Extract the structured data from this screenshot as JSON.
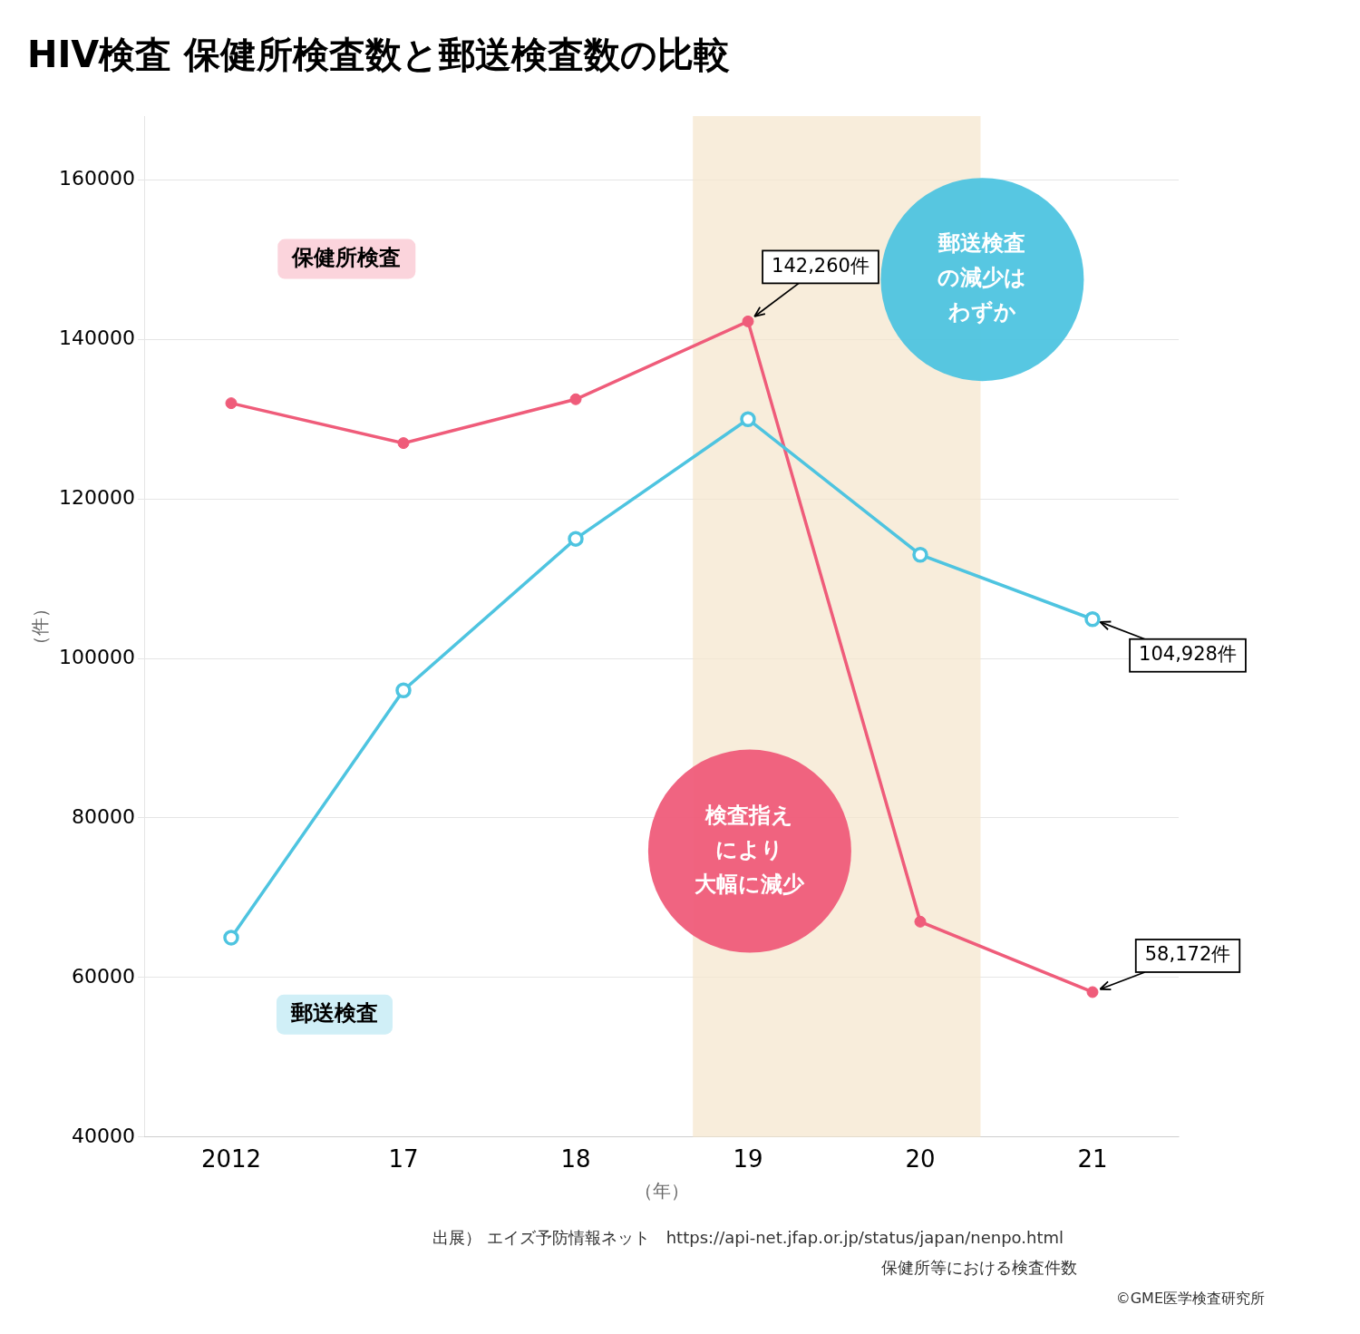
{
  "chart_data": {
    "type": "line",
    "title": "HIV検査 保健所検査数と郵送検査数の比較",
    "x_label": "（年）",
    "y_label": "（件）",
    "categories": [
      "2012",
      "17",
      "18",
      "19",
      "20",
      "21"
    ],
    "series": [
      {
        "name": "郵送検査",
        "color": "#4EC4E0",
        "marker": "open_circle",
        "values": [
          65000,
          96000,
          115000,
          130000,
          113000,
          104928
        ]
      },
      {
        "name": "保健所検査",
        "color": "#EF5C7A",
        "marker": "circle",
        "values": [
          132000,
          127000,
          132500,
          142260,
          67000,
          58172
        ]
      }
    ],
    "ylim": [
      40000,
      168000
    ],
    "yticks": [
      40000,
      60000,
      80000,
      100000,
      120000,
      140000,
      160000
    ],
    "grid": true,
    "annotations": [
      {
        "text": "142,260件",
        "x": "19",
        "y": 142260
      },
      {
        "text": "104,928件",
        "x": "21",
        "y": 104928
      },
      {
        "text": "58,172件",
        "x": "21",
        "y": 58172
      },
      {
        "text": "検査指え\nにより\n大幅に減少"
      },
      {
        "text": "郵送検査\nの減少は\nわずか"
      }
    ],
    "source": [
      "出展） エイズ予防情報ネット　https://api-net.jfap.or.jp/status/japan/nenpo.html",
      "保健所等における検査件数",
      "©GME医学検査研究所"
    ]
  }
}
